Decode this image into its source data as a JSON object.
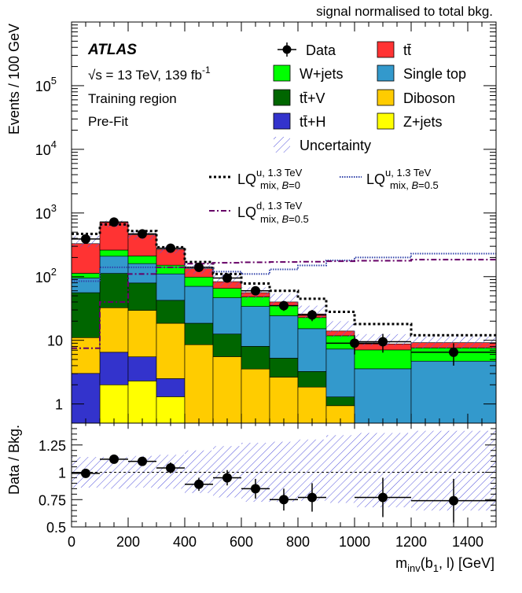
{
  "chart_data": {
    "type": "bar",
    "note_top": "signal normalised to total bkg.",
    "experiment": "ATLAS",
    "energy_label": "√s = 13 TeV, 139 fb",
    "energy_sup": "-1",
    "region_label": "Training region",
    "fit_label": "Pre-Fit",
    "ylabel": "Events / 100 GeV",
    "ratio_ylabel": "Data / Bkg.",
    "xlabel": "m",
    "xlabel_sub": "inv",
    "xlabel_tail": "(b",
    "xlabel_sub2": "1",
    "xlabel_end": ", l) [GeV]",
    "x_edges": [
      0,
      100,
      200,
      300,
      400,
      500,
      600,
      700,
      800,
      900,
      1000,
      1200,
      1500
    ],
    "x_ticks": [
      "0",
      "200",
      "400",
      "600",
      "800",
      "1000",
      "1200",
      "1400"
    ],
    "y_ticks_main": [
      "1",
      "10",
      "10",
      "10",
      "10",
      "10"
    ],
    "y_tick_exponents": [
      "",
      "",
      "2",
      "3",
      "4",
      "5"
    ],
    "ratio_y_ticks": [
      "0.5",
      "0.75",
      "1",
      "1.25"
    ],
    "ylim": [
      0.5,
      1000000
    ],
    "ratio_ylim": [
      0.5,
      1.45
    ],
    "yscale": "log",
    "legend": {
      "data": "Data",
      "ttbar": "tt̄",
      "wjets": "W+jets",
      "singletop": "Single top",
      "ttv": "tt̄+V",
      "diboson": "Diboson",
      "tth": "tt̄+H",
      "zjets": "Z+jets",
      "uncertainty": "Uncertainty",
      "lq_u_b0": {
        "main": "LQ",
        "sup": "u, 1.3 TeV",
        "sub": "mix, ",
        "sub_b": "B",
        "sub_end": "=0"
      },
      "lq_u_b05": {
        "main": "LQ",
        "sup": "u, 1.3 TeV",
        "sub": "mix, ",
        "sub_b": "B",
        "sub_end": "=0.5"
      },
      "lq_d_b05": {
        "main": "LQ",
        "sup": "d, 1.3 TeV",
        "sub": "mix, ",
        "sub_b": "B",
        "sub_end": "=0.5"
      }
    },
    "colors": {
      "zjets": "#ffff00",
      "tth": "#3333cc",
      "diboson": "#ffcc00",
      "ttv": "#006600",
      "singletop": "#3399cc",
      "wjets": "#00ff00",
      "ttbar": "#ff3333",
      "uncertainty": "#5555dd",
      "lq_u_b0": "#000000",
      "lq_u_b05": "#3344aa",
      "lq_d_b05": "#660066"
    },
    "stack_order": [
      "zjets",
      "tth",
      "diboson",
      "ttv",
      "singletop",
      "wjets",
      "ttbar"
    ],
    "stack": {
      "zjets": [
        0.02,
        2.0,
        2.3,
        1.3,
        0.02,
        0.02,
        0.02,
        0.02,
        0.02,
        0.02,
        0.02,
        0.02
      ],
      "tth": [
        3.0,
        4.5,
        3.2,
        1.2,
        0.02,
        0.02,
        0.02,
        0.02,
        0.02,
        0.02,
        0.02,
        0.02
      ],
      "diboson": [
        8,
        26,
        24,
        16,
        8.5,
        5.5,
        3.5,
        2.6,
        1.8,
        0.9,
        0.03,
        0.03
      ],
      "ttv": [
        45,
        80,
        50,
        24,
        10,
        7,
        4.5,
        2.6,
        1.4,
        0.35,
        0.1,
        0.03
      ],
      "singletop": [
        39,
        97,
        81,
        68,
        52,
        34,
        26,
        19,
        12,
        6,
        3.4,
        4.6
      ],
      "wjets": [
        18,
        52,
        51,
        41,
        28,
        19,
        14,
        11,
        7.5,
        4.5,
        3.5,
        2.9
      ],
      "ttbar": [
        217,
        456,
        243,
        117,
        35,
        18,
        8,
        4.8,
        3.2,
        2.2,
        1.7,
        1.6
      ]
    },
    "uncertainty_band": {
      "low": [
        290,
        600,
        380,
        230,
        110,
        70,
        43,
        32,
        21,
        11,
        8.2,
        7.2
      ],
      "high": [
        440,
        760,
        520,
        300,
        160,
        110,
        68,
        54,
        35,
        20,
        12.5,
        11.5
      ]
    },
    "data": {
      "x": [
        50,
        150,
        250,
        350,
        450,
        550,
        650,
        750,
        850,
        1000,
        1100,
        1350
      ],
      "y": [
        390,
        720,
        470,
        280,
        140,
        95,
        60,
        35,
        25,
        9,
        9.5,
        6.5
      ],
      "yerr": [
        20,
        27,
        22,
        17,
        12,
        10,
        8,
        6,
        5,
        3,
        3.1,
        2.5
      ]
    },
    "signals": {
      "lq_u_b0": {
        "style": "dotted",
        "values": [
          470,
          660,
          520,
          290,
          170,
          110,
          78,
          60,
          45,
          28,
          18,
          12
        ]
      },
      "lq_u_b05": {
        "style": "densedot",
        "values": [
          85,
          140,
          140,
          140,
          140,
          120,
          110,
          130,
          150,
          180,
          200,
          230
        ]
      },
      "lq_d_b05": {
        "style": "dashdot",
        "values": [
          7.5,
          40,
          110,
          140,
          160,
          165,
          168,
          170,
          172,
          175,
          178,
          185
        ]
      }
    },
    "ratio": {
      "x": [
        50,
        150,
        250,
        350,
        450,
        550,
        650,
        750,
        850,
        1100,
        1350
      ],
      "y": [
        0.99,
        1.12,
        1.1,
        1.04,
        0.89,
        0.95,
        0.85,
        0.75,
        0.77,
        0.77,
        0.74
      ],
      "yerr": [
        0.03,
        0.03,
        0.03,
        0.05,
        0.06,
        0.07,
        0.09,
        0.1,
        0.13,
        0.18,
        0.2
      ],
      "xerr": [
        50,
        50,
        50,
        50,
        50,
        50,
        50,
        50,
        50,
        100,
        150
      ],
      "band_low": [
        0.86,
        0.85,
        0.86,
        0.85,
        0.81,
        0.77,
        0.73,
        0.73,
        0.74,
        0.72,
        0.68,
        0.65
      ],
      "band_high": [
        1.14,
        1.14,
        1.15,
        1.16,
        1.2,
        1.24,
        1.27,
        1.28,
        1.3,
        1.34,
        1.36,
        1.38
      ]
    }
  }
}
